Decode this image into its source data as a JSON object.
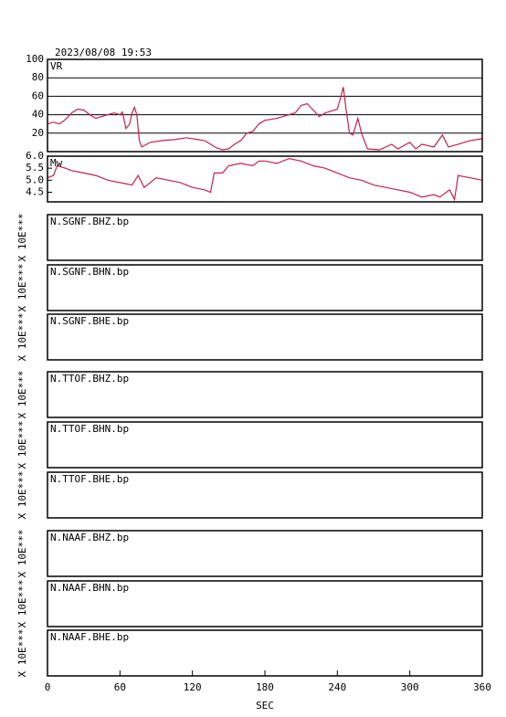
{
  "title": "2023/08/08 19:53",
  "x_axis": {
    "label": "SEC",
    "xlim": [
      0,
      360
    ],
    "xticks": [
      0,
      60,
      120,
      180,
      240,
      300,
      360
    ]
  },
  "chart_data": [
    {
      "type": "line",
      "label": "VR",
      "color": "#c8204c",
      "grid": true,
      "ylim": [
        0,
        100
      ],
      "yticks": [
        20,
        40,
        60,
        80,
        100
      ],
      "x": [
        0,
        5,
        10,
        15,
        20,
        25,
        30,
        35,
        40,
        45,
        50,
        55,
        60,
        62,
        65,
        68,
        70,
        72,
        74,
        76,
        78,
        85,
        95,
        105,
        115,
        125,
        130,
        135,
        140,
        145,
        150,
        155,
        160,
        165,
        170,
        175,
        180,
        190,
        200,
        205,
        210,
        215,
        220,
        225,
        230,
        235,
        240,
        243,
        245,
        247,
        250,
        253,
        257,
        260,
        265,
        275,
        285,
        290,
        300,
        305,
        310,
        320,
        327,
        332,
        340,
        350,
        360
      ],
      "values": [
        30,
        32,
        30,
        35,
        42,
        46,
        45,
        40,
        36,
        38,
        40,
        42,
        40,
        43,
        25,
        30,
        42,
        48,
        40,
        12,
        5,
        10,
        12,
        13,
        15,
        13,
        12,
        8,
        4,
        2,
        3,
        8,
        12,
        20,
        22,
        30,
        34,
        36,
        40,
        42,
        50,
        52,
        45,
        38,
        42,
        44,
        46,
        60,
        70,
        48,
        20,
        18,
        36,
        20,
        3,
        2,
        8,
        3,
        10,
        3,
        8,
        5,
        18,
        5,
        8,
        12,
        14
      ]
    },
    {
      "type": "line",
      "label": "Mw",
      "color": "#c8204c",
      "grid": false,
      "ylim": [
        4.1,
        6.0
      ],
      "yticks": [
        {
          "value": 6.0,
          "label": "6.0"
        },
        5.5,
        {
          "value": 5.0,
          "label": "5.0"
        },
        4.5
      ],
      "x": [
        0,
        5,
        8,
        15,
        20,
        30,
        40,
        50,
        60,
        70,
        75,
        80,
        90,
        100,
        110,
        120,
        130,
        135,
        138,
        145,
        150,
        160,
        170,
        175,
        180,
        190,
        200,
        210,
        220,
        230,
        240,
        250,
        260,
        270,
        280,
        290,
        300,
        310,
        320,
        325,
        333,
        337,
        340,
        350,
        360
      ],
      "values": [
        5.1,
        5.2,
        5.6,
        5.5,
        5.4,
        5.3,
        5.2,
        5.0,
        4.9,
        4.8,
        5.2,
        4.7,
        5.1,
        5.0,
        4.9,
        4.7,
        4.6,
        4.5,
        5.3,
        5.3,
        5.6,
        5.7,
        5.6,
        5.8,
        5.8,
        5.7,
        5.9,
        5.8,
        5.6,
        5.5,
        5.3,
        5.1,
        5.0,
        4.8,
        4.7,
        4.6,
        4.5,
        4.3,
        4.4,
        4.3,
        4.6,
        4.2,
        5.2,
        5.1,
        5.0
      ]
    }
  ],
  "panels": [
    {
      "label": "N.SGNF.BHZ.bp",
      "ylabel": "X 10E***"
    },
    {
      "label": "N.SGNF.BHN.bp",
      "ylabel": "X 10E***"
    },
    {
      "label": "N.SGNF.BHE.bp",
      "ylabel": "X 10E***"
    },
    {
      "label": "N.TTOF.BHZ.bp",
      "ylabel": "X 10E***"
    },
    {
      "label": "N.TTOF.BHN.bp",
      "ylabel": "X 10E***"
    },
    {
      "label": "N.TTOF.BHE.bp",
      "ylabel": "X 10E***"
    },
    {
      "label": "N.NAAF.BHZ.bp",
      "ylabel": "X 10E***"
    },
    {
      "label": "N.NAAF.BHN.bp",
      "ylabel": "X 10E***"
    },
    {
      "label": "N.NAAF.BHE.bp",
      "ylabel": "X 10E***"
    }
  ]
}
